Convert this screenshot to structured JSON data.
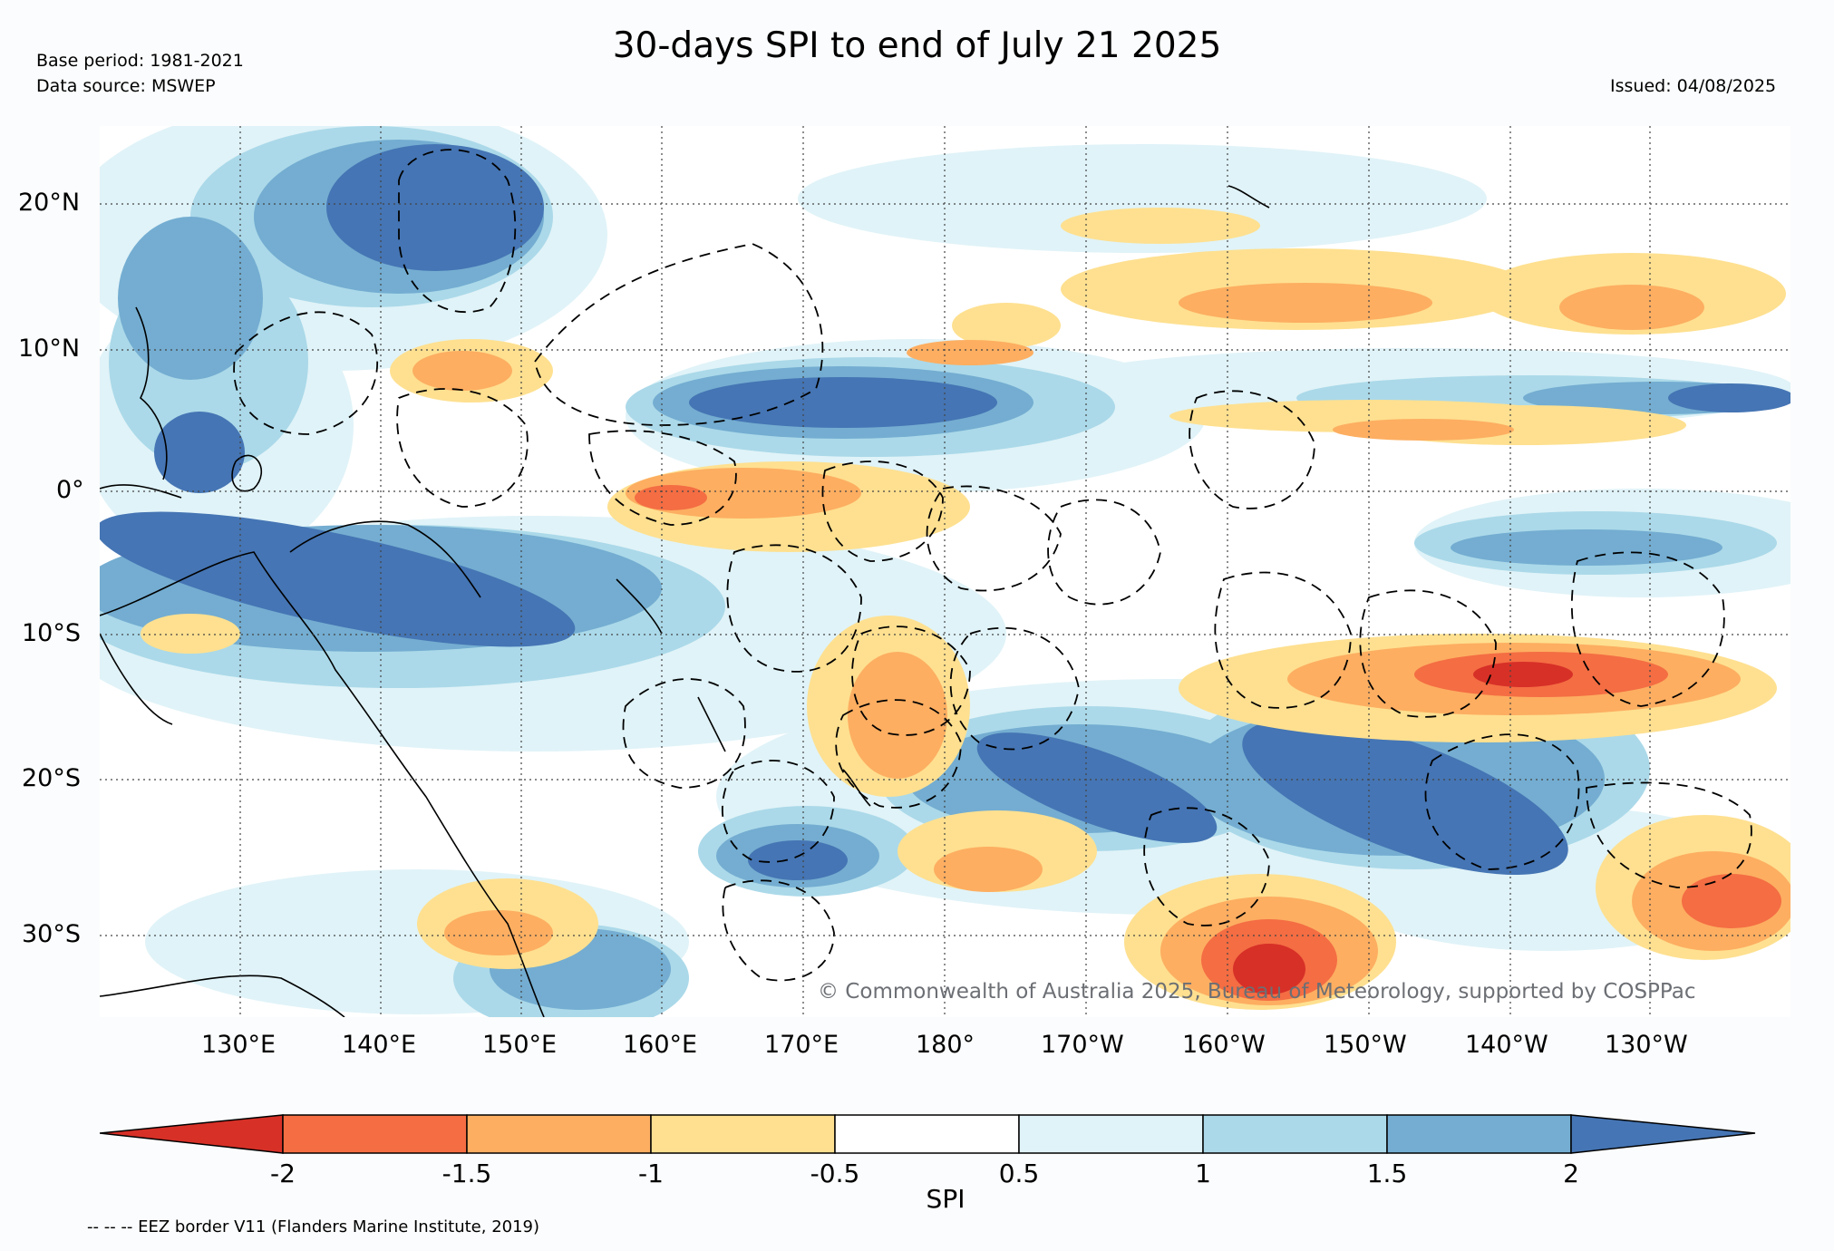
{
  "title": "30-days SPI to end of July 21 2025",
  "base_period": "Base period: 1981-2021",
  "data_source": "Data source: MSWEP",
  "issued": "Issued: 04/08/2025",
  "credit": "© Commonwealth of Australia 2025, Bureau of Meteorology, supported by COSPPac",
  "lat_labels": [
    "20°N",
    "10°N",
    "0°",
    "10°S",
    "20°S",
    "30°S"
  ],
  "lon_labels": [
    "130°E",
    "140°E",
    "150°E",
    "160°E",
    "170°E",
    "180°",
    "170°W",
    "160°W",
    "150°W",
    "140°W",
    "130°W"
  ],
  "colorbar": {
    "title": "SPI",
    "labels": [
      "-2",
      "-1.5",
      "-1",
      "-0.5",
      "0.5",
      "1",
      "1.5",
      "2"
    ],
    "colors": [
      "#d73027",
      "#f46d43",
      "#fdae61",
      "#fee090",
      "#ffffff",
      "#e0f3f8",
      "#abd9e9",
      "#74add1",
      "#4575b4"
    ]
  },
  "legend_note": "-- -- -- EEZ border V11 (Flanders Marine Institute, 2019)"
}
